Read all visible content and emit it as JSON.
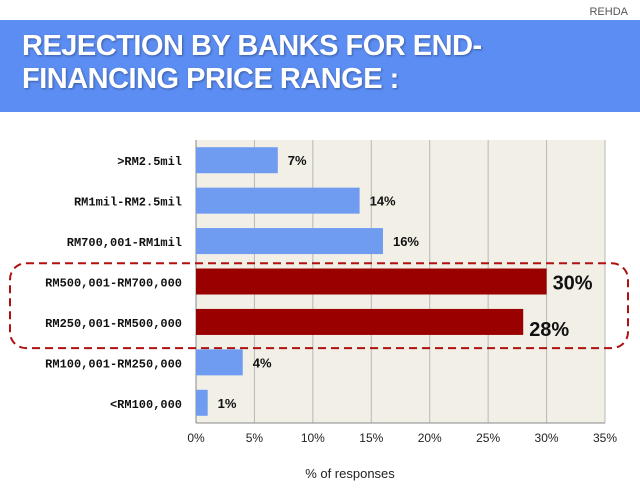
{
  "header": {
    "brand": "REHDA",
    "title_line1": "REJECTION BY BANKS FOR END-",
    "title_line2": "FINANCING PRICE RANGE :"
  },
  "colors": {
    "title_band": "#5b8df3",
    "bar_normal": "#6f9cf0",
    "bar_highlight": "#990000",
    "plot_bg": "#f1efe6",
    "highlight_border": "#b01010"
  },
  "chart_data": {
    "type": "bar",
    "orientation": "horizontal",
    "title": "REJECTION BY BANKS FOR END-FINANCING PRICE RANGE :",
    "xlabel": "% of responses",
    "ylabel": "",
    "xlim": [
      0,
      35
    ],
    "x_ticks": [
      "0%",
      "5%",
      "10%",
      "15%",
      "20%",
      "25%",
      "30%",
      "35%"
    ],
    "grid": true,
    "categories": [
      ">RM2.5mil",
      "RM1mil-RM2.5mil",
      "RM700,001-RM1mil",
      "RM500,001-RM700,000",
      "RM250,001-RM500,000",
      "RM100,001-RM250,000",
      "<RM100,000"
    ],
    "values": [
      7,
      14,
      16,
      30,
      28,
      4,
      1
    ],
    "data_labels": [
      "7%",
      "14%",
      "16%",
      "30%",
      "28%",
      "4%",
      "1%"
    ],
    "highlighted": [
      false,
      false,
      false,
      true,
      true,
      false,
      false
    ]
  }
}
